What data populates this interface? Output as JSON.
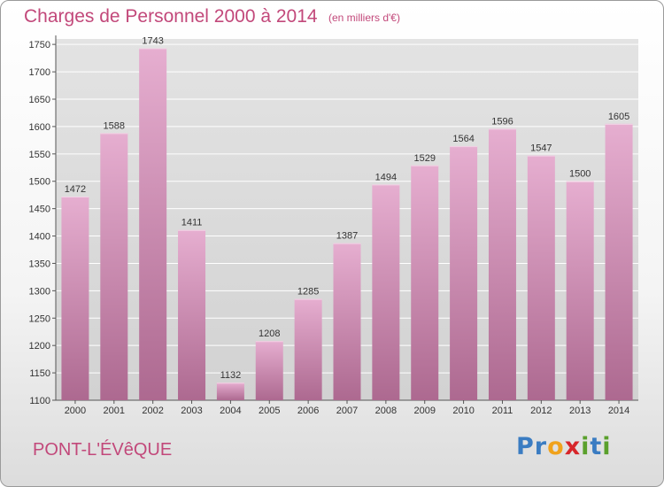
{
  "header": {
    "title": "Charges de Personnel 2000 à 2014",
    "unit": "(en milliers d'€)"
  },
  "footer": {
    "location": "PONT-L'ÉVêQUE",
    "brand": "Proxiti"
  },
  "colors": {
    "accent": "#c2487a",
    "bar_top": "#e6aed0",
    "bar_bottom": "#ad6990",
    "grid": "#ffffff",
    "plot_bg_top": "#e3e3e3",
    "plot_bg_bottom": "#d2d2d2",
    "logo_letters": [
      "#3a7cc2",
      "#3a7cc2",
      "#f0a21c",
      "#d7262a",
      "#5aa02c",
      "#3a7cc2",
      "#5aa02c"
    ]
  },
  "chart_data": {
    "type": "bar",
    "title": "Charges de Personnel 2000 à 2014",
    "subtitle": "(en milliers d'€)",
    "categories": [
      "2000",
      "2001",
      "2002",
      "2003",
      "2004",
      "2005",
      "2006",
      "2007",
      "2008",
      "2009",
      "2010",
      "2011",
      "2012",
      "2013",
      "2014"
    ],
    "values": [
      1472,
      1588,
      1743,
      1411,
      1132,
      1208,
      1285,
      1387,
      1494,
      1529,
      1564,
      1596,
      1547,
      1500,
      1605
    ],
    "ylim": [
      1100,
      1760
    ],
    "yticks": [
      1100,
      1150,
      1200,
      1250,
      1300,
      1350,
      1400,
      1450,
      1500,
      1550,
      1600,
      1650,
      1700,
      1750
    ],
    "grid": true,
    "legend": "none",
    "xlabel": "",
    "ylabel": ""
  }
}
